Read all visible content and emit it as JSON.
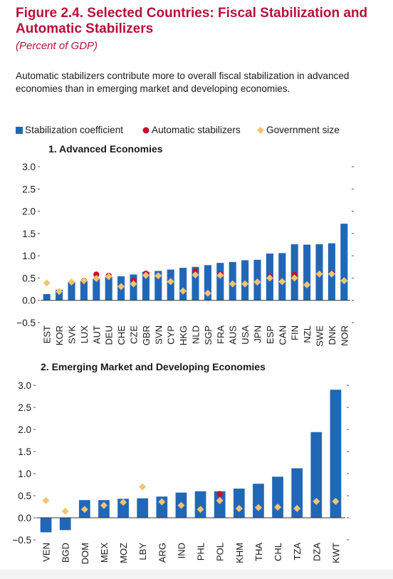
{
  "header": {
    "title": "Figure 2.4. Selected Countries: Fiscal Stabilization and Automatic Stabilizers",
    "subtitle": "(Percent of GDP)",
    "description": "Automatic stabilizers contribute more to overall fiscal stabilization in advanced economies than in emerging market and developing economies."
  },
  "legend": {
    "stabilization": "Stabilization coefficient",
    "automatic": "Automatic stabilizers",
    "government": "Government size"
  },
  "colors": {
    "bar": "#2167b8",
    "automatic": "#c8102e",
    "government": "#f5c46e",
    "title": "#b5123a"
  },
  "chart_data": [
    {
      "type": "bar",
      "title": "1. Advanced Economies",
      "ylim": [
        -0.5,
        3.0
      ],
      "yticks": [
        -0.5,
        0.0,
        0.5,
        1.0,
        1.5,
        2.0,
        2.5,
        3.0
      ],
      "ytick_labels": [
        "−0.5",
        "0.0",
        "0.5",
        "1.0",
        "1.5",
        "2.0",
        "2.5",
        "3.0"
      ],
      "categories": [
        "EST",
        "KOR",
        "SVK",
        "LUX",
        "AUT",
        "DEU",
        "CHE",
        "CZE",
        "GBR",
        "SVN",
        "CYP",
        "HKG",
        "NLD",
        "SGP",
        "FRA",
        "AUS",
        "USA",
        "JPN",
        "ESP",
        "CAN",
        "FIN",
        "NZL",
        "SWE",
        "DNK",
        "NOR"
      ],
      "series": [
        {
          "name": "Stabilization coefficient",
          "kind": "bar",
          "values": [
            0.14,
            0.24,
            0.42,
            0.44,
            0.49,
            0.53,
            0.54,
            0.58,
            0.64,
            0.66,
            0.69,
            0.73,
            0.75,
            0.79,
            0.84,
            0.86,
            0.9,
            0.91,
            1.05,
            1.06,
            1.26,
            1.25,
            1.26,
            1.28,
            1.72
          ]
        },
        {
          "name": "Automatic stabilizers",
          "kind": "dot",
          "values": [
            null,
            null,
            null,
            0.44,
            0.58,
            0.55,
            null,
            0.44,
            0.6,
            null,
            null,
            null,
            0.65,
            null,
            0.59,
            null,
            null,
            null,
            0.53,
            null,
            0.57,
            null,
            0.59,
            0.61,
            null
          ]
        },
        {
          "name": "Government size",
          "kind": "diamond",
          "values": [
            0.39,
            0.2,
            0.41,
            0.44,
            0.49,
            0.53,
            0.31,
            0.37,
            0.56,
            0.55,
            0.42,
            0.21,
            0.57,
            0.16,
            0.56,
            0.37,
            0.37,
            0.41,
            0.5,
            0.42,
            0.5,
            0.35,
            0.59,
            0.59,
            0.44
          ]
        }
      ]
    },
    {
      "type": "bar",
      "title": "2. Emerging Market and Developing Economies",
      "ylim": [
        -0.5,
        3.0
      ],
      "yticks": [
        -0.5,
        0.0,
        0.5,
        1.0,
        1.5,
        2.0,
        2.5,
        3.0
      ],
      "ytick_labels": [
        "−0.5",
        "0.0",
        "0.5",
        "1.0",
        "1.5",
        "2.0",
        "2.5",
        "3.0"
      ],
      "categories": [
        "VEN",
        "BGD",
        "DOM",
        "MEX",
        "MOZ",
        "LBY",
        "ARG",
        "IND",
        "PHL",
        "POL",
        "KHM",
        "THA",
        "CHL",
        "TZA",
        "DZA",
        "KWT"
      ],
      "series": [
        {
          "name": "Stabilization coefficient",
          "kind": "bar",
          "values": [
            -0.33,
            -0.28,
            0.4,
            0.4,
            0.43,
            0.44,
            0.48,
            0.57,
            0.6,
            0.6,
            0.66,
            0.77,
            0.93,
            1.12,
            1.94,
            2.9
          ]
        },
        {
          "name": "Automatic stabilizers",
          "kind": "dot",
          "values": [
            null,
            null,
            null,
            null,
            null,
            null,
            null,
            null,
            null,
            0.54,
            null,
            null,
            null,
            null,
            null,
            null
          ]
        },
        {
          "name": "Government size",
          "kind": "diamond",
          "values": [
            0.39,
            0.15,
            0.19,
            0.28,
            0.35,
            0.7,
            0.36,
            0.28,
            0.19,
            0.39,
            0.21,
            0.23,
            0.24,
            0.21,
            0.37,
            0.37
          ]
        }
      ]
    }
  ]
}
